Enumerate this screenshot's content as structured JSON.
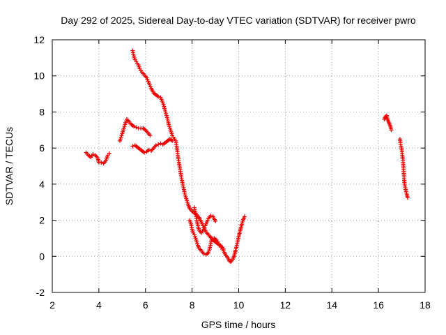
{
  "chart_data": {
    "type": "scatter",
    "title": "Day 292 of 2025, Sidereal Day-to-day VTEC variation (SDTVAR) for receiver pwro",
    "xlabel": "GPS time / hours",
    "ylabel": "SDTVAR / TECUs",
    "xlim": [
      2,
      18
    ],
    "ylim": [
      -2,
      12
    ],
    "xticks": [
      2,
      4,
      6,
      8,
      10,
      12,
      14,
      16,
      18
    ],
    "yticks": [
      -2,
      0,
      2,
      4,
      6,
      8,
      10,
      12
    ],
    "xtick_labels": [
      "2",
      "4",
      "6",
      "8",
      "10",
      "12",
      "14",
      "16",
      "18"
    ],
    "ytick_labels": [
      "-2",
      "0",
      "2",
      "4",
      "6",
      "8",
      "10",
      "12"
    ],
    "grid": true,
    "marker": "+",
    "color": "#ee0000",
    "series": [
      {
        "name": "SDTVAR",
        "segments": [
          [
            [
              3.45,
              5.75
            ],
            [
              3.55,
              5.6
            ],
            [
              3.65,
              5.5
            ],
            [
              3.75,
              5.65
            ],
            [
              3.85,
              5.6
            ],
            [
              3.95,
              5.45
            ],
            [
              4.0,
              5.2
            ],
            [
              4.1,
              5.2
            ],
            [
              4.2,
              5.15
            ],
            [
              4.3,
              5.3
            ],
            [
              4.38,
              5.6
            ],
            [
              4.45,
              5.7
            ]
          ],
          [
            [
              4.9,
              6.4
            ],
            [
              4.95,
              6.6
            ],
            [
              5.0,
              6.8
            ],
            [
              5.05,
              7.0
            ],
            [
              5.12,
              7.3
            ],
            [
              5.2,
              7.6
            ],
            [
              5.3,
              7.45
            ],
            [
              5.4,
              7.3
            ],
            [
              5.5,
              7.2
            ],
            [
              5.6,
              7.15
            ],
            [
              5.7,
              7.1
            ],
            [
              5.8,
              7.1
            ],
            [
              5.9,
              7.1
            ],
            [
              6.0,
              7.0
            ],
            [
              6.1,
              6.85
            ],
            [
              6.2,
              6.7
            ]
          ],
          [
            [
              5.45,
              11.4
            ],
            [
              5.5,
              11.1
            ],
            [
              5.55,
              10.9
            ],
            [
              5.6,
              10.8
            ],
            [
              5.7,
              10.6
            ],
            [
              5.75,
              10.4
            ],
            [
              5.85,
              10.2
            ],
            [
              5.95,
              10.05
            ],
            [
              6.05,
              9.9
            ],
            [
              6.15,
              9.6
            ],
            [
              6.25,
              9.3
            ],
            [
              6.35,
              9.05
            ],
            [
              6.45,
              8.95
            ],
            [
              6.55,
              8.85
            ],
            [
              6.65,
              8.8
            ],
            [
              6.75,
              8.5
            ],
            [
              6.82,
              8.2
            ],
            [
              6.88,
              7.9
            ],
            [
              6.95,
              7.6
            ],
            [
              7.0,
              7.3
            ],
            [
              7.05,
              7.1
            ],
            [
              7.1,
              6.9
            ],
            [
              7.15,
              6.7
            ],
            [
              7.2,
              6.6
            ],
            [
              7.3,
              6.4
            ],
            [
              7.35,
              6.0
            ],
            [
              7.4,
              5.5
            ],
            [
              7.45,
              5.1
            ],
            [
              7.5,
              4.7
            ],
            [
              7.55,
              4.3
            ],
            [
              7.6,
              4.0
            ],
            [
              7.65,
              3.7
            ],
            [
              7.7,
              3.4
            ],
            [
              7.75,
              3.2
            ],
            [
              7.8,
              3.0
            ],
            [
              7.85,
              2.8
            ],
            [
              7.9,
              2.65
            ],
            [
              8.0,
              2.5
            ],
            [
              8.1,
              2.4
            ],
            [
              8.2,
              2.3
            ],
            [
              8.3,
              2.15
            ],
            [
              8.4,
              1.9
            ],
            [
              8.5,
              1.6
            ],
            [
              8.6,
              1.35
            ],
            [
              8.7,
              1.2
            ],
            [
              8.8,
              1.05
            ],
            [
              8.9,
              0.9
            ],
            [
              9.0,
              0.8
            ],
            [
              9.1,
              0.7
            ],
            [
              9.2,
              0.6
            ],
            [
              9.3,
              0.5
            ],
            [
              9.35,
              0.4
            ]
          ],
          [
            [
              5.45,
              6.1
            ],
            [
              5.55,
              6.15
            ],
            [
              5.65,
              6.05
            ],
            [
              5.75,
              5.95
            ],
            [
              5.85,
              5.85
            ],
            [
              5.95,
              5.75
            ],
            [
              6.05,
              5.8
            ],
            [
              6.15,
              5.9
            ],
            [
              6.25,
              5.85
            ],
            [
              6.35,
              6.0
            ],
            [
              6.45,
              6.15
            ],
            [
              6.55,
              6.2
            ],
            [
              6.65,
              6.25
            ],
            [
              6.75,
              6.2
            ],
            [
              6.85,
              6.3
            ],
            [
              6.95,
              6.4
            ],
            [
              7.05,
              6.5
            ],
            [
              7.15,
              6.4
            ]
          ],
          [
            [
              7.9,
              2.0
            ],
            [
              7.95,
              1.8
            ],
            [
              8.0,
              1.5
            ],
            [
              8.05,
              1.3
            ],
            [
              8.1,
              1.2
            ],
            [
              8.15,
              1.0
            ],
            [
              8.2,
              0.8
            ],
            [
              8.25,
              0.6
            ],
            [
              8.3,
              0.45
            ],
            [
              8.4,
              0.3
            ],
            [
              8.5,
              0.15
            ],
            [
              8.6,
              0.1
            ],
            [
              8.7,
              0.2
            ],
            [
              8.75,
              0.4
            ],
            [
              8.8,
              0.7
            ],
            [
              8.85,
              1.0
            ]
          ],
          [
            [
              8.1,
              2.7
            ],
            [
              8.15,
              2.4
            ],
            [
              8.2,
              2.0
            ],
            [
              8.25,
              1.7
            ],
            [
              8.3,
              1.45
            ],
            [
              8.4,
              1.3
            ],
            [
              8.5,
              1.5
            ],
            [
              8.6,
              1.8
            ],
            [
              8.7,
              2.1
            ],
            [
              8.8,
              2.25
            ],
            [
              8.9,
              2.2
            ],
            [
              9.0,
              1.95
            ]
          ],
          [
            [
              8.95,
              1.0
            ],
            [
              9.05,
              0.9
            ],
            [
              9.15,
              0.7
            ],
            [
              9.25,
              0.5
            ],
            [
              9.35,
              0.3
            ],
            [
              9.45,
              0.05
            ],
            [
              9.55,
              -0.1
            ],
            [
              9.6,
              -0.25
            ],
            [
              9.65,
              -0.3
            ],
            [
              9.7,
              -0.25
            ],
            [
              9.75,
              -0.15
            ],
            [
              9.8,
              0.0
            ],
            [
              9.85,
              0.25
            ],
            [
              9.9,
              0.5
            ],
            [
              9.95,
              0.8
            ],
            [
              10.0,
              1.1
            ],
            [
              10.05,
              1.35
            ],
            [
              10.1,
              1.6
            ],
            [
              10.15,
              1.85
            ],
            [
              10.2,
              2.05
            ],
            [
              10.25,
              2.2
            ]
          ],
          [
            [
              16.25,
              7.6
            ],
            [
              16.3,
              7.75
            ],
            [
              16.35,
              7.8
            ],
            [
              16.4,
              7.55
            ],
            [
              16.45,
              7.4
            ],
            [
              16.5,
              7.25
            ],
            [
              16.55,
              7.0
            ]
          ],
          [
            [
              16.92,
              6.5
            ],
            [
              16.95,
              6.2
            ],
            [
              17.0,
              5.9
            ],
            [
              17.05,
              5.3
            ],
            [
              17.08,
              4.8
            ],
            [
              17.1,
              4.3
            ],
            [
              17.12,
              4.0
            ],
            [
              17.15,
              3.8
            ],
            [
              17.2,
              3.5
            ],
            [
              17.25,
              3.25
            ]
          ]
        ]
      }
    ]
  }
}
